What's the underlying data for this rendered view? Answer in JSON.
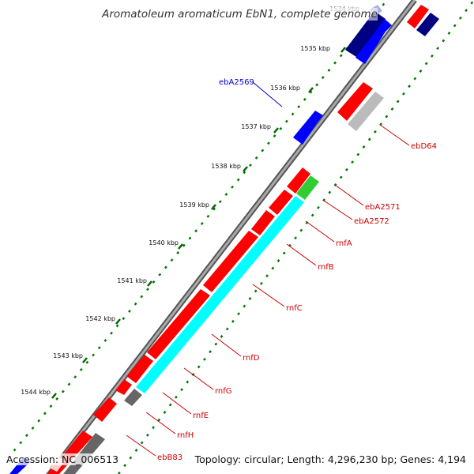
{
  "title": "Aromatoleum aromaticum EbN1, complete genome",
  "footer": {
    "accession_label": "Accession:",
    "accession": "NC_006513",
    "topology_label": "Topology:",
    "topology": "circular",
    "length_label": "Length:",
    "length": "4,296,230 bp",
    "genes_label": "Genes:",
    "genes": "4,194"
  },
  "ruler_labels": [
    "1534 kbp",
    "1535 kbp",
    "1536 kbp",
    "1537 kbp",
    "1538 kbp",
    "1539 kbp",
    "1540 kbp",
    "1541 kbp",
    "1542 kbp",
    "1543 kbp",
    "1544 kbp"
  ],
  "gene_labels": [
    "ebA2569",
    "ebD64",
    "ebA2571",
    "ebA2572",
    "rnfA",
    "rnfB",
    "rnfC",
    "rnfD",
    "rnfG",
    "rnfE",
    "rnfH",
    "ebB83"
  ],
  "colors": {
    "forward_cds": "#ff0000",
    "reverse_cds": "#0000ff",
    "dark_blue": "#000080",
    "rnf_feature": "#00ffff",
    "green_feature": "#33cc33",
    "backbone": "#808080",
    "label_red": "#cc0000",
    "label_blue": "#0000cc",
    "dotted_green": "#007700"
  }
}
